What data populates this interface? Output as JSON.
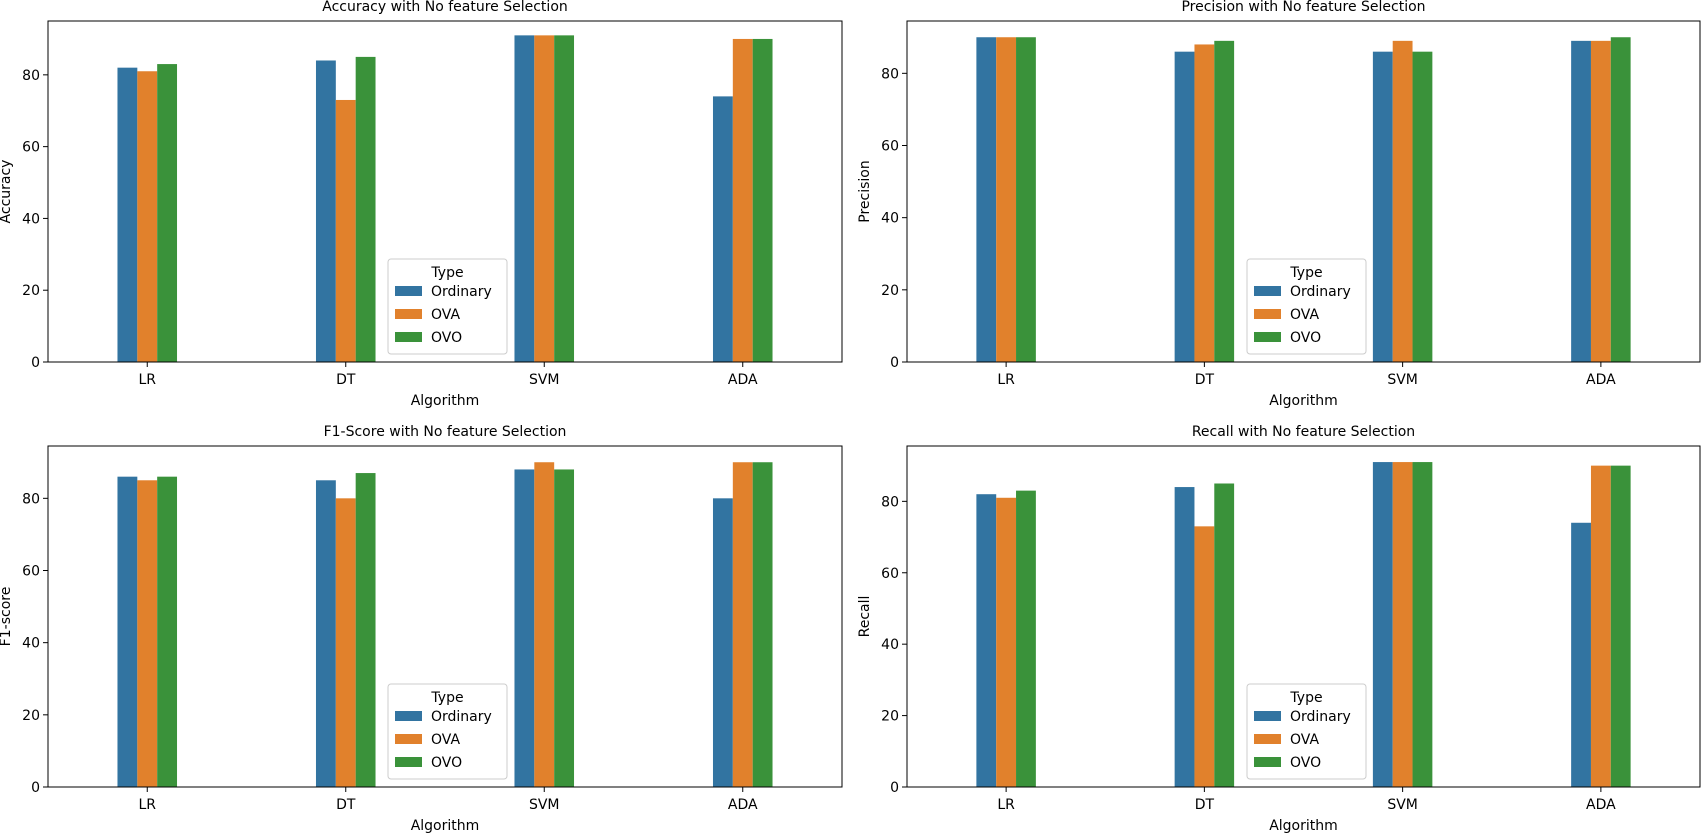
{
  "chart_data": [
    {
      "type": "bar",
      "title": "Accuracy with No feature Selection",
      "xlabel": "Algorithm",
      "ylabel": "Accuracy",
      "categories": [
        "LR",
        "DT",
        "SVM",
        "ADA"
      ],
      "ylim": [
        0,
        95
      ],
      "yticks": [
        0,
        20,
        40,
        60,
        80
      ],
      "legend": {
        "title": "Type",
        "placement": "lower-center"
      },
      "series": [
        {
          "name": "Ordinary",
          "color": "#3274a1",
          "values": [
            82,
            84,
            91,
            74
          ]
        },
        {
          "name": "OVA",
          "color": "#e1812c",
          "values": [
            81,
            73,
            91,
            90
          ]
        },
        {
          "name": "OVO",
          "color": "#3a923a",
          "values": [
            83,
            85,
            91,
            90
          ]
        }
      ]
    },
    {
      "type": "bar",
      "title": "Precision with No feature Selection",
      "xlabel": "Algorithm",
      "ylabel": "Precision",
      "categories": [
        "LR",
        "DT",
        "SVM",
        "ADA"
      ],
      "ylim": [
        0,
        94.5
      ],
      "yticks": [
        0,
        20,
        40,
        60,
        80
      ],
      "legend": {
        "title": "Type",
        "placement": "lower-center"
      },
      "series": [
        {
          "name": "Ordinary",
          "color": "#3274a1",
          "values": [
            90,
            86,
            86,
            89
          ]
        },
        {
          "name": "OVA",
          "color": "#e1812c",
          "values": [
            90,
            88,
            89,
            89
          ]
        },
        {
          "name": "OVO",
          "color": "#3a923a",
          "values": [
            90,
            89,
            86,
            90
          ]
        }
      ]
    },
    {
      "type": "bar",
      "title": "F1-Score with No feature Selection",
      "xlabel": "Algorithm",
      "ylabel": "F1-score",
      "categories": [
        "LR",
        "DT",
        "SVM",
        "ADA"
      ],
      "ylim": [
        0,
        94.5
      ],
      "yticks": [
        0,
        20,
        40,
        60,
        80
      ],
      "legend": {
        "title": "Type",
        "placement": "lower-center"
      },
      "series": [
        {
          "name": "Ordinary",
          "color": "#3274a1",
          "values": [
            86,
            85,
            88,
            80
          ]
        },
        {
          "name": "OVA",
          "color": "#e1812c",
          "values": [
            85,
            80,
            90,
            90
          ]
        },
        {
          "name": "OVO",
          "color": "#3a923a",
          "values": [
            86,
            87,
            88,
            90
          ]
        }
      ]
    },
    {
      "type": "bar",
      "title": "Recall with No feature Selection",
      "xlabel": "Algorithm",
      "ylabel": "Recall",
      "categories": [
        "LR",
        "DT",
        "SVM",
        "ADA"
      ],
      "ylim": [
        0,
        95.5
      ],
      "yticks": [
        0,
        20,
        40,
        60,
        80
      ],
      "legend": {
        "title": "Type",
        "placement": "lower-center"
      },
      "series": [
        {
          "name": "Ordinary",
          "color": "#3274a1",
          "values": [
            82,
            84,
            91,
            74
          ]
        },
        {
          "name": "OVA",
          "color": "#e1812c",
          "values": [
            81,
            73,
            91,
            90
          ]
        },
        {
          "name": "OVO",
          "color": "#3a923a",
          "values": [
            83,
            85,
            91,
            90
          ]
        }
      ]
    }
  ]
}
